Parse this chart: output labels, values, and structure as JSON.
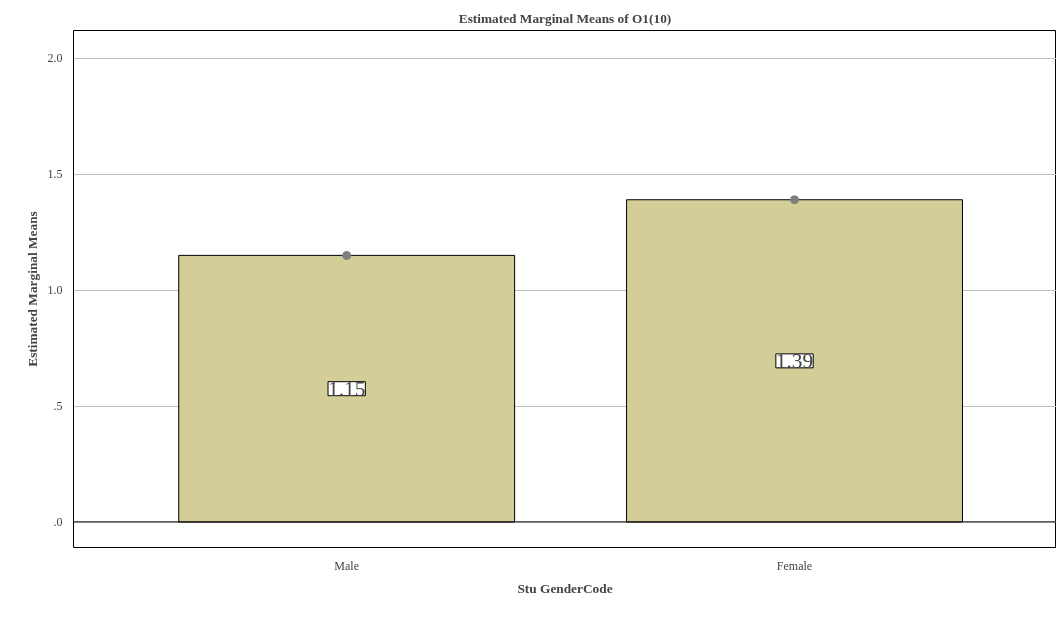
{
  "chart_data": {
    "type": "bar",
    "title": "Estimated Marginal Means of O1(10)",
    "xlabel": "Stu GenderCode",
    "ylabel": "Estimated Marginal Means",
    "categories": [
      "Male",
      "Female"
    ],
    "series": [
      {
        "color": "#d3cd98",
        "values": [
          1.15,
          1.39
        ],
        "value_labels": [
          "1.15",
          "1.39"
        ]
      },
      {
        "type": "scatter",
        "color": "#7f7f7f",
        "values": [
          1.15,
          1.39
        ]
      }
    ],
    "ylim": [
      -0.11,
      2.12
    ],
    "yticks": [
      {
        "value": 0,
        "label": ".0"
      },
      {
        "value": 0.5,
        "label": ".5"
      },
      {
        "value": 1,
        "label": "1.0"
      },
      {
        "value": 1.5,
        "label": "1.5"
      },
      {
        "value": 2,
        "label": "2.0"
      }
    ],
    "ref_lines": [
      {
        "axis": "y",
        "value": 0,
        "color": "#000000"
      }
    ],
    "grid": "y",
    "marker": "circle"
  }
}
